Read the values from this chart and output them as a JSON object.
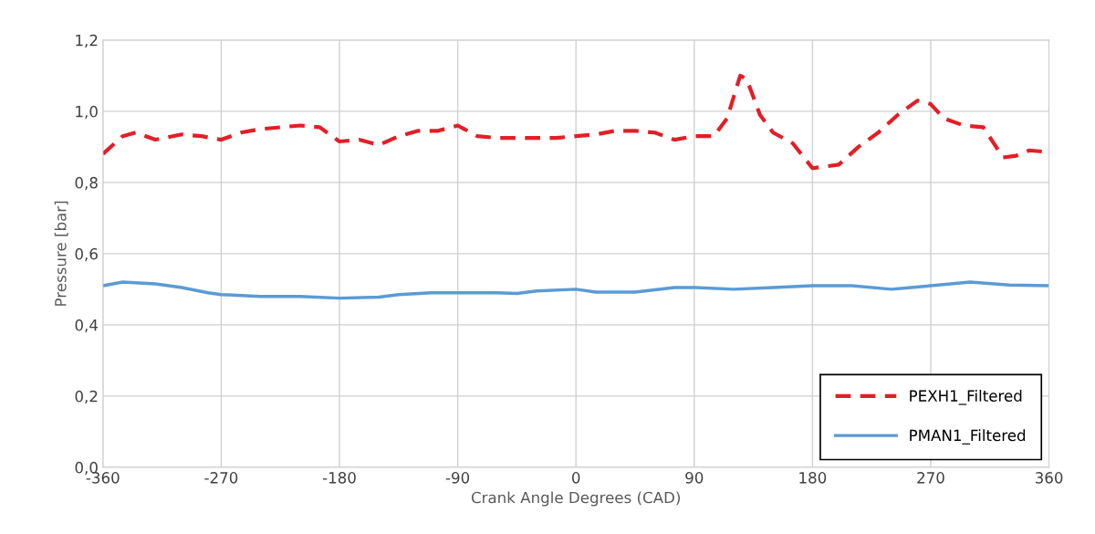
{
  "chart_data": {
    "type": "line",
    "xlabel": "Crank Angle Degrees (CAD)",
    "ylabel": "Pressure [bar]",
    "xlim": [
      -360,
      360
    ],
    "xticks": [
      -360,
      -270,
      -180,
      -90,
      0,
      90,
      180,
      270,
      360
    ],
    "ylim": [
      0,
      1.2
    ],
    "yticks": [
      {
        "value": 0,
        "label": "0,0"
      },
      {
        "value": 0.2,
        "label": "0,2"
      },
      {
        "value": 0.4,
        "label": "0,4"
      },
      {
        "value": 0.6,
        "label": "0,6"
      },
      {
        "value": 0.8,
        "label": "0,8"
      },
      {
        "value": 1.0,
        "label": "1,0"
      },
      {
        "value": 1.2,
        "label": "1,2"
      }
    ],
    "grid": true,
    "legend": "bottom right",
    "marker": "none",
    "series": [
      {
        "name": "PEXH1_Filtered",
        "color": "#e41e26",
        "line_style": "dashed",
        "x": [
          -360,
          -345,
          -335,
          -320,
          -300,
          -285,
          -270,
          -255,
          -240,
          -225,
          -210,
          -195,
          -180,
          -165,
          -150,
          -135,
          -120,
          -105,
          -90,
          -75,
          -60,
          -45,
          -30,
          -15,
          0,
          15,
          30,
          45,
          60,
          75,
          90,
          105,
          115,
          125,
          130,
          140,
          150,
          165,
          180,
          190,
          200,
          215,
          230,
          245,
          260,
          270,
          280,
          295,
          310,
          325,
          335,
          345,
          360
        ],
        "values": [
          0.88,
          0.93,
          0.94,
          0.92,
          0.935,
          0.93,
          0.92,
          0.94,
          0.95,
          0.955,
          0.96,
          0.955,
          0.915,
          0.92,
          0.905,
          0.93,
          0.945,
          0.945,
          0.96,
          0.93,
          0.925,
          0.925,
          0.925,
          0.925,
          0.93,
          0.935,
          0.945,
          0.945,
          0.94,
          0.92,
          0.93,
          0.93,
          0.98,
          1.1,
          1.09,
          0.99,
          0.94,
          0.91,
          0.84,
          0.845,
          0.85,
          0.9,
          0.94,
          0.99,
          1.03,
          1.02,
          0.98,
          0.96,
          0.955,
          0.87,
          0.875,
          0.89,
          0.885
        ]
      },
      {
        "name": "PMAN1_Filtered",
        "color": "#5b9bd5",
        "line_style": "solid",
        "x": [
          -360,
          -345,
          -320,
          -300,
          -280,
          -270,
          -240,
          -210,
          -180,
          -150,
          -135,
          -110,
          -90,
          -60,
          -45,
          -30,
          0,
          15,
          45,
          75,
          90,
          120,
          150,
          180,
          210,
          240,
          255,
          270,
          300,
          330,
          360
        ],
        "values": [
          0.51,
          0.52,
          0.515,
          0.505,
          0.49,
          0.485,
          0.48,
          0.48,
          0.475,
          0.478,
          0.485,
          0.49,
          0.49,
          0.49,
          0.488,
          0.495,
          0.5,
          0.492,
          0.492,
          0.505,
          0.505,
          0.5,
          0.505,
          0.51,
          0.51,
          0.5,
          0.505,
          0.51,
          0.52,
          0.512,
          0.51
        ]
      }
    ]
  }
}
